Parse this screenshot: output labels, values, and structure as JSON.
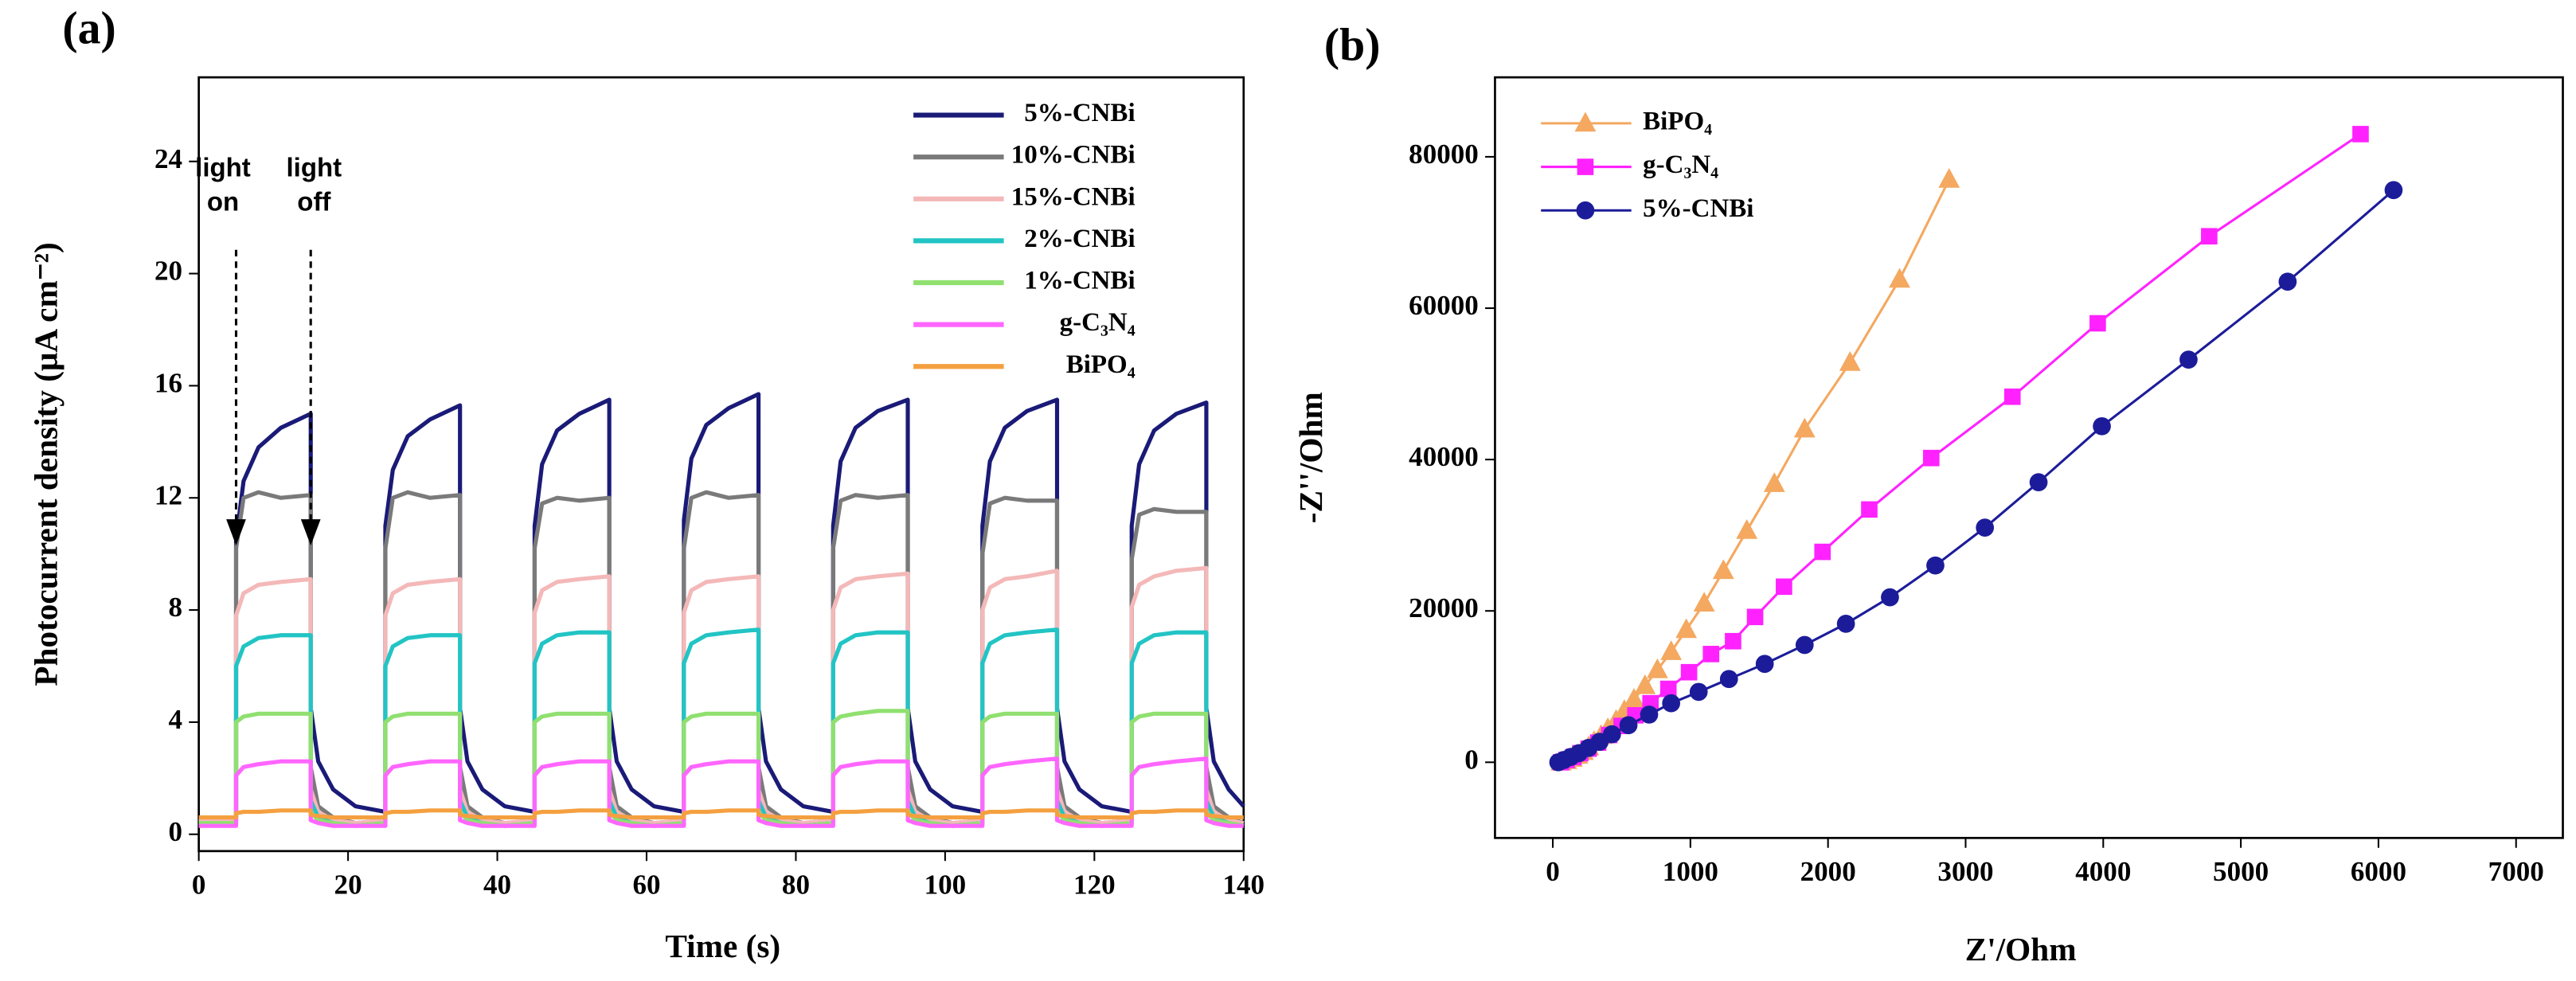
{
  "chart_data": [
    {
      "type": "line",
      "panel": "(a)",
      "x_label": "Time (s)",
      "y_label": "Photocurrent density (μA cm⁻²)",
      "xlim": [
        0,
        140
      ],
      "ylim": [
        -0.6,
        27
      ],
      "xticks": [
        0,
        20,
        40,
        60,
        80,
        100,
        120,
        140
      ],
      "yticks": [
        0,
        4,
        8,
        12,
        16,
        20,
        24
      ],
      "legend": "upper right",
      "annotations": [
        {
          "lines": [
            "light",
            "on"
          ],
          "x": 5
        },
        {
          "lines": [
            "light",
            "off"
          ],
          "x": 15
        }
      ],
      "x": [
        0,
        5,
        5,
        6,
        8,
        11,
        15,
        15,
        16,
        18,
        21,
        25,
        25,
        26,
        28,
        31,
        35,
        35,
        36,
        38,
        41,
        45,
        45,
        46,
        48,
        51,
        55,
        55,
        56,
        58,
        61,
        65,
        65,
        66,
        68,
        71,
        75,
        75,
        76,
        78,
        81,
        85,
        85,
        86,
        88,
        91,
        95,
        95,
        96,
        98,
        101,
        105,
        105,
        106,
        108,
        111,
        115,
        115,
        116,
        118,
        121,
        125,
        125,
        126,
        128,
        131,
        135,
        135,
        136,
        138,
        140
      ],
      "series": [
        {
          "name": "5%-CNBi",
          "color": "#1a1a78",
          "values": [
            0.6,
            0.6,
            10.5,
            12.6,
            13.8,
            14.5,
            15.0,
            4.5,
            2.6,
            1.6,
            1.0,
            0.8,
            11.0,
            13.0,
            14.2,
            14.8,
            15.3,
            4.5,
            2.6,
            1.6,
            1.0,
            0.8,
            11.0,
            13.2,
            14.4,
            15.0,
            15.5,
            4.5,
            2.6,
            1.6,
            1.0,
            0.8,
            11.2,
            13.4,
            14.6,
            15.2,
            15.7,
            4.5,
            2.6,
            1.6,
            1.0,
            0.8,
            11.0,
            13.3,
            14.5,
            15.1,
            15.5,
            4.5,
            2.6,
            1.6,
            1.0,
            0.8,
            11.0,
            13.3,
            14.5,
            15.1,
            15.5,
            4.5,
            2.6,
            1.6,
            1.0,
            0.8,
            11.0,
            13.2,
            14.4,
            15.0,
            15.4,
            4.5,
            2.6,
            1.6,
            1.0
          ]
        },
        {
          "name": "10%-CNBi",
          "color": "#7a7a7a",
          "values": [
            0.5,
            0.5,
            10.2,
            12.0,
            12.2,
            12.0,
            12.1,
            2.4,
            1.0,
            0.6,
            0.4,
            0.5,
            10.2,
            12.0,
            12.2,
            12.0,
            12.1,
            2.4,
            1.0,
            0.6,
            0.4,
            0.5,
            10.2,
            11.8,
            12.0,
            11.9,
            12.0,
            2.4,
            1.0,
            0.6,
            0.4,
            0.5,
            10.2,
            12.0,
            12.2,
            12.0,
            12.1,
            2.4,
            1.0,
            0.6,
            0.4,
            0.5,
            10.2,
            11.9,
            12.1,
            12.0,
            12.1,
            2.4,
            1.0,
            0.6,
            0.4,
            0.5,
            10.0,
            11.8,
            12.0,
            11.9,
            11.9,
            2.4,
            1.0,
            0.6,
            0.4,
            0.5,
            9.8,
            11.4,
            11.6,
            11.5,
            11.5,
            2.4,
            1.0,
            0.6,
            0.4
          ]
        },
        {
          "name": "15%-CNBi",
          "color": "#f4b8b8",
          "values": [
            0.5,
            0.5,
            7.8,
            8.6,
            8.9,
            9.0,
            9.1,
            1.6,
            0.8,
            0.5,
            0.4,
            0.5,
            7.8,
            8.6,
            8.9,
            9.0,
            9.1,
            1.6,
            0.8,
            0.5,
            0.4,
            0.5,
            7.9,
            8.7,
            9.0,
            9.1,
            9.2,
            1.6,
            0.8,
            0.5,
            0.4,
            0.5,
            7.9,
            8.7,
            9.0,
            9.1,
            9.2,
            1.6,
            0.8,
            0.5,
            0.4,
            0.5,
            8.0,
            8.8,
            9.1,
            9.2,
            9.3,
            1.6,
            0.8,
            0.5,
            0.4,
            0.5,
            8.0,
            8.8,
            9.1,
            9.2,
            9.4,
            1.6,
            0.8,
            0.5,
            0.4,
            0.5,
            8.1,
            8.9,
            9.2,
            9.4,
            9.5,
            1.6,
            0.8,
            0.5,
            0.4
          ]
        },
        {
          "name": "2%-CNBi",
          "color": "#22c4c4",
          "values": [
            0.4,
            0.4,
            6.0,
            6.7,
            7.0,
            7.1,
            7.1,
            1.2,
            0.6,
            0.4,
            0.3,
            0.4,
            6.0,
            6.7,
            7.0,
            7.1,
            7.1,
            1.2,
            0.6,
            0.4,
            0.3,
            0.4,
            6.1,
            6.8,
            7.1,
            7.2,
            7.2,
            1.2,
            0.6,
            0.4,
            0.3,
            0.4,
            6.1,
            6.8,
            7.1,
            7.2,
            7.3,
            1.2,
            0.6,
            0.4,
            0.3,
            0.4,
            6.1,
            6.8,
            7.1,
            7.2,
            7.2,
            1.2,
            0.6,
            0.4,
            0.3,
            0.4,
            6.1,
            6.8,
            7.1,
            7.2,
            7.3,
            1.2,
            0.6,
            0.4,
            0.3,
            0.4,
            6.1,
            6.8,
            7.1,
            7.2,
            7.2,
            1.2,
            0.6,
            0.4,
            0.3
          ]
        },
        {
          "name": "1%-CNBi",
          "color": "#90e070",
          "values": [
            0.4,
            0.4,
            4.0,
            4.2,
            4.3,
            4.3,
            4.3,
            0.8,
            0.5,
            0.4,
            0.3,
            0.4,
            4.0,
            4.2,
            4.3,
            4.3,
            4.3,
            0.8,
            0.5,
            0.4,
            0.3,
            0.4,
            4.0,
            4.2,
            4.3,
            4.3,
            4.3,
            0.8,
            0.5,
            0.4,
            0.3,
            0.4,
            4.0,
            4.2,
            4.3,
            4.3,
            4.3,
            0.8,
            0.5,
            0.4,
            0.3,
            0.4,
            4.0,
            4.2,
            4.3,
            4.4,
            4.4,
            0.8,
            0.5,
            0.4,
            0.3,
            0.4,
            4.0,
            4.2,
            4.3,
            4.3,
            4.3,
            0.8,
            0.5,
            0.4,
            0.3,
            0.4,
            4.0,
            4.2,
            4.3,
            4.3,
            4.3,
            0.8,
            0.5,
            0.4,
            0.3
          ]
        },
        {
          "name": "g-C₃N₄",
          "color": "#ff66ff",
          "values": [
            0.3,
            0.3,
            2.1,
            2.4,
            2.5,
            2.6,
            2.6,
            0.5,
            0.4,
            0.3,
            0.3,
            0.3,
            2.1,
            2.4,
            2.5,
            2.6,
            2.6,
            0.5,
            0.4,
            0.3,
            0.3,
            0.3,
            2.1,
            2.4,
            2.5,
            2.6,
            2.6,
            0.5,
            0.4,
            0.3,
            0.3,
            0.3,
            2.1,
            2.4,
            2.5,
            2.6,
            2.6,
            0.5,
            0.4,
            0.3,
            0.3,
            0.3,
            2.1,
            2.4,
            2.5,
            2.6,
            2.6,
            0.5,
            0.4,
            0.3,
            0.3,
            0.3,
            2.1,
            2.4,
            2.5,
            2.6,
            2.7,
            0.5,
            0.4,
            0.3,
            0.3,
            0.3,
            2.1,
            2.4,
            2.5,
            2.6,
            2.7,
            0.5,
            0.4,
            0.3,
            0.3
          ]
        },
        {
          "name": "BiPO₄",
          "color": "#f4a040",
          "values": [
            0.6,
            0.6,
            0.75,
            0.8,
            0.8,
            0.85,
            0.85,
            0.7,
            0.65,
            0.6,
            0.6,
            0.6,
            0.75,
            0.8,
            0.8,
            0.85,
            0.85,
            0.7,
            0.65,
            0.6,
            0.6,
            0.6,
            0.75,
            0.8,
            0.8,
            0.85,
            0.85,
            0.7,
            0.65,
            0.6,
            0.6,
            0.6,
            0.75,
            0.8,
            0.8,
            0.85,
            0.85,
            0.7,
            0.65,
            0.6,
            0.6,
            0.6,
            0.75,
            0.8,
            0.8,
            0.85,
            0.85,
            0.7,
            0.65,
            0.6,
            0.6,
            0.6,
            0.75,
            0.8,
            0.8,
            0.85,
            0.85,
            0.7,
            0.65,
            0.6,
            0.6,
            0.6,
            0.75,
            0.8,
            0.8,
            0.85,
            0.85,
            0.7,
            0.65,
            0.6,
            0.6
          ]
        }
      ]
    },
    {
      "type": "line",
      "panel": "(b)",
      "x_label": "Z'/Ohm",
      "y_label": "-Z''/Ohm",
      "xlim": [
        -420,
        7340
      ],
      "ylim": [
        -10000,
        90500
      ],
      "xticks": [
        0,
        1000,
        2000,
        3000,
        4000,
        5000,
        6000,
        7000
      ],
      "yticks": [
        0,
        20000,
        40000,
        60000,
        80000
      ],
      "legend": "upper left",
      "series": [
        {
          "name": "BiPO₄",
          "color": "#f4a860",
          "marker": "triangle",
          "x": [
            60,
            100,
            140,
            180,
            220,
            260,
            300,
            350,
            400,
            460,
            520,
            590,
            670,
            760,
            860,
            970,
            1100,
            1240,
            1410,
            1610,
            1830,
            2160,
            2520,
            2880
          ],
          "values": [
            0,
            200,
            500,
            900,
            1400,
            2000,
            2700,
            3500,
            4400,
            5500,
            6800,
            8300,
            10100,
            12200,
            14600,
            17500,
            21000,
            25300,
            30600,
            36800,
            44000,
            52800,
            63800,
            77000
          ]
        },
        {
          "name": "g-C₃N₄",
          "color": "#ff22ff",
          "marker": "square",
          "x": [
            60,
            100,
            150,
            200,
            260,
            330,
            410,
            500,
            600,
            710,
            840,
            990,
            1150,
            1310,
            1470,
            1680,
            1960,
            2300,
            2750,
            3340,
            3960,
            4770,
            5870
          ],
          "values": [
            0,
            300,
            700,
            1200,
            1800,
            2600,
            3600,
            4800,
            6200,
            7800,
            9700,
            11900,
            14300,
            16000,
            19200,
            23200,
            27800,
            33400,
            40200,
            48300,
            58000,
            69500,
            83000
          ]
        },
        {
          "name": "5%-CNBi",
          "color": "#1c1c9a",
          "marker": "circle",
          "x": [
            40,
            80,
            130,
            190,
            260,
            340,
            430,
            550,
            700,
            860,
            1060,
            1280,
            1540,
            1830,
            2130,
            2450,
            2780,
            3140,
            3530,
            3990,
            4620,
            5340,
            6110
          ],
          "values": [
            0,
            300,
            700,
            1200,
            1900,
            2700,
            3700,
            4900,
            6300,
            7800,
            9300,
            11000,
            13000,
            15500,
            18300,
            21800,
            26000,
            31000,
            37000,
            44400,
            53200,
            63500,
            75600
          ]
        }
      ]
    }
  ]
}
